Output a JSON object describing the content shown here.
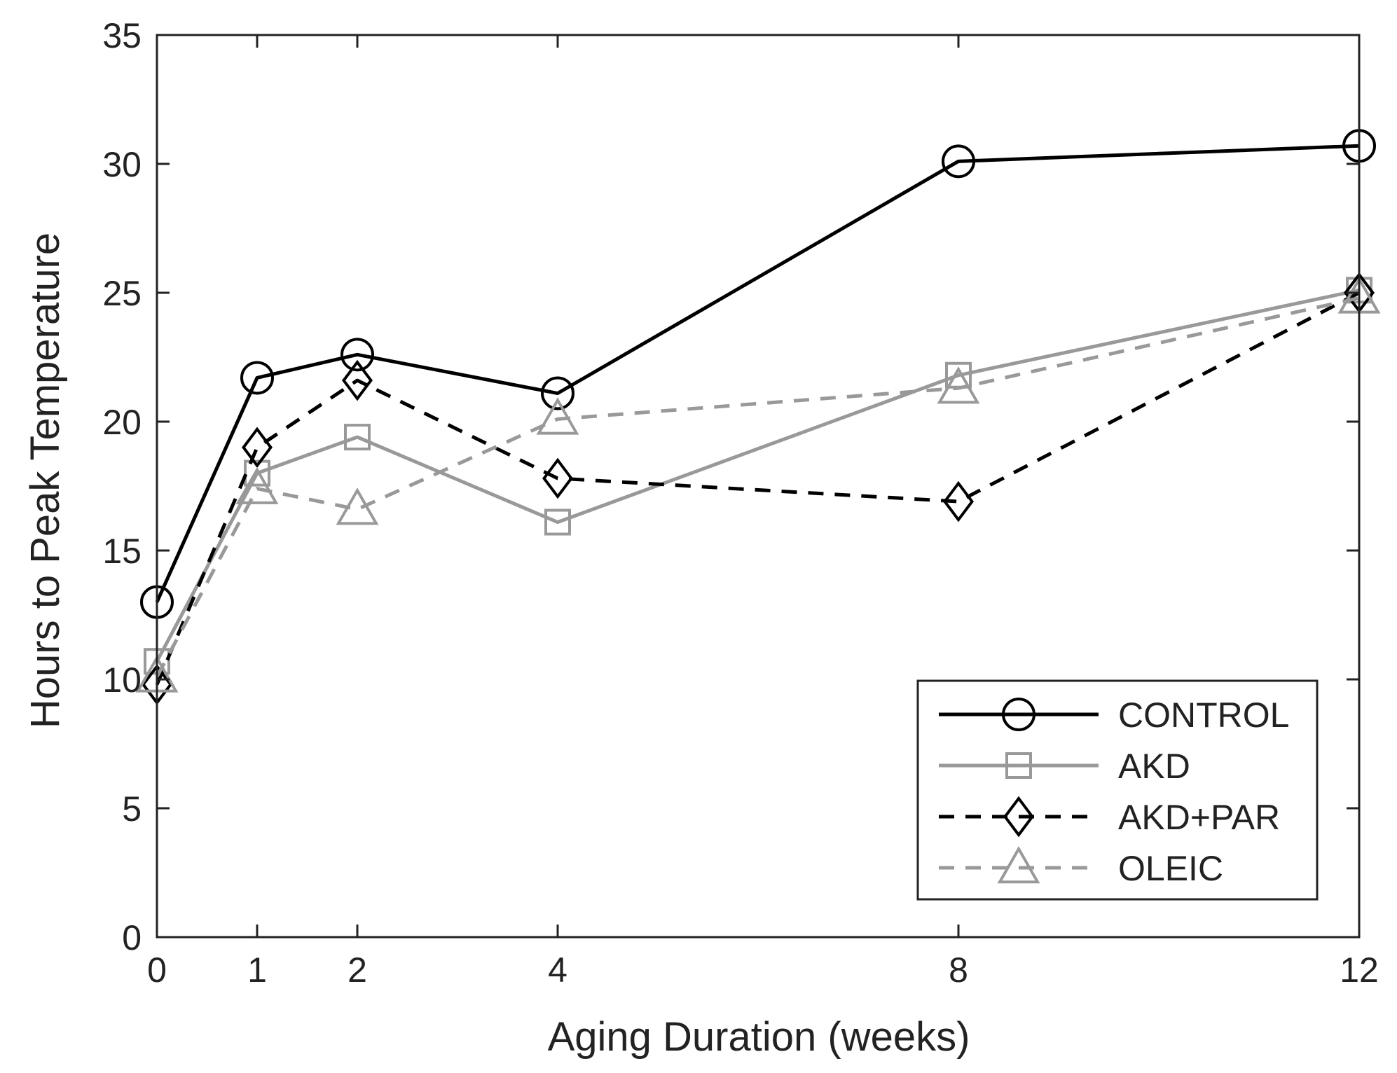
{
  "chart_data": {
    "type": "line",
    "title": "",
    "xlabel": "Aging Duration (weeks)",
    "ylabel": "Hours to Peak Temperature",
    "x": [
      0,
      1,
      2,
      4,
      8,
      12
    ],
    "xlim": [
      0,
      12
    ],
    "ylim": [
      0,
      35
    ],
    "xticks": [
      "0",
      "1",
      "2",
      "4",
      "8",
      "12"
    ],
    "yticks": [
      "0",
      "5",
      "10",
      "15",
      "20",
      "25",
      "30",
      "35"
    ],
    "grid": false,
    "legend_position": "bottom-right",
    "series": [
      {
        "name": "CONTROL",
        "values": [
          13.0,
          21.7,
          22.6,
          21.1,
          30.1,
          30.7
        ],
        "color": "#000000",
        "line": "solid",
        "marker": "circle"
      },
      {
        "name": "AKD",
        "values": [
          10.7,
          18.0,
          19.4,
          16.1,
          21.8,
          25.1
        ],
        "color": "#999999",
        "line": "solid",
        "marker": "square"
      },
      {
        "name": "AKD+PAR",
        "values": [
          9.8,
          19.0,
          21.6,
          17.8,
          16.9,
          25.0
        ],
        "color": "#000000",
        "line": "dashed",
        "marker": "diamond"
      },
      {
        "name": "OLEIC",
        "values": [
          10.1,
          17.4,
          16.6,
          20.1,
          21.3,
          24.8
        ],
        "color": "#999999",
        "line": "dashed",
        "marker": "triangle"
      }
    ]
  }
}
